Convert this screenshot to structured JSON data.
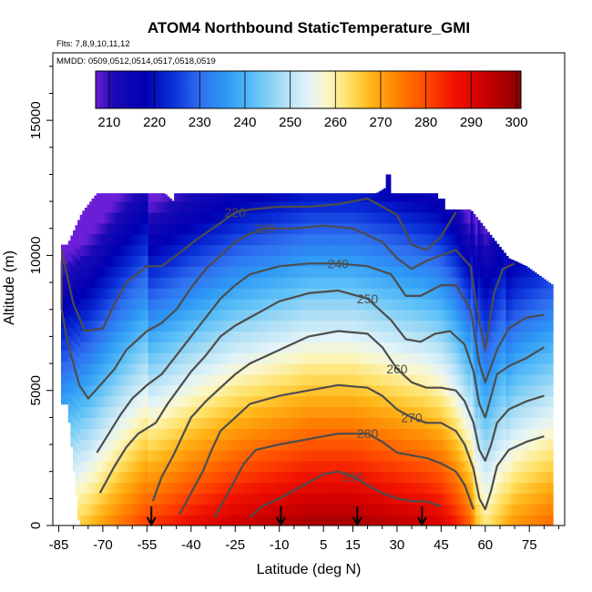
{
  "chart_data": {
    "type": "heatmap",
    "title": "ATOM4 Northbound StaticTemperature_GMI",
    "subtitle_flights": "Flts: 7,8,9,10,11,12",
    "subtitle_dates": "MMDD: 0509,0512,0514,0517,0518,0519",
    "xlabel": "Latitude (deg N)",
    "ylabel": "Altitude (m)",
    "xlim": [
      -87,
      87
    ],
    "ylim": [
      0,
      17500
    ],
    "x_ticks": [
      -85,
      -70,
      -55,
      -40,
      -25,
      -10,
      5,
      15,
      30,
      45,
      60,
      75
    ],
    "y_ticks": [
      0,
      5000,
      10000,
      15000
    ],
    "colorbar": {
      "range": [
        207,
        301
      ],
      "ticks": [
        210,
        220,
        230,
        240,
        250,
        260,
        270,
        280,
        290,
        300
      ],
      "colors": [
        [
          207,
          "#6a1fd6"
        ],
        [
          211,
          "#1a0ab4"
        ],
        [
          218,
          "#0000b3"
        ],
        [
          224,
          "#0a2fd8"
        ],
        [
          230,
          "#2f6ef0"
        ],
        [
          236,
          "#2e9af5"
        ],
        [
          242,
          "#5cc0f7"
        ],
        [
          248,
          "#a6dcf5"
        ],
        [
          254,
          "#e2f3f8"
        ],
        [
          258,
          "#fbf7c8"
        ],
        [
          263,
          "#ffe062"
        ],
        [
          268,
          "#ffb416"
        ],
        [
          274,
          "#ff8000"
        ],
        [
          280,
          "#ff4b00"
        ],
        [
          286,
          "#f21300"
        ],
        [
          292,
          "#d20000"
        ],
        [
          301,
          "#8c0000"
        ]
      ]
    },
    "contour_levels": [
      220,
      230,
      240,
      250,
      260,
      270,
      280,
      290
    ],
    "contours": [
      {
        "level": 220,
        "label": "220",
        "points": [
          [
            -84,
            10200
          ],
          [
            -80,
            8200
          ],
          [
            -76,
            7200
          ],
          [
            -70,
            7300
          ],
          [
            -66,
            8200
          ],
          [
            -62,
            9000
          ],
          [
            -55,
            9600
          ],
          [
            -50,
            9600
          ],
          [
            -45,
            10000
          ],
          [
            -38,
            10600
          ],
          [
            -30,
            11200
          ],
          [
            -25,
            11600
          ],
          [
            -20,
            11700
          ],
          [
            -10,
            11800
          ],
          [
            0,
            11800
          ],
          [
            10,
            11900
          ],
          [
            20,
            12100
          ],
          [
            30,
            11500
          ],
          [
            35,
            10400
          ],
          [
            40,
            10200
          ],
          [
            45,
            10700
          ],
          [
            50,
            11600
          ]
        ]
      },
      {
        "level": 230,
        "label": "230",
        "points": [
          [
            -84,
            9800
          ],
          [
            -84,
            8000
          ],
          [
            -82,
            6800
          ],
          [
            -78,
            5200
          ],
          [
            -75,
            4700
          ],
          [
            -70,
            5300
          ],
          [
            -66,
            5800
          ],
          [
            -62,
            6500
          ],
          [
            -55,
            7200
          ],
          [
            -50,
            7500
          ],
          [
            -45,
            8000
          ],
          [
            -40,
            8800
          ],
          [
            -35,
            9500
          ],
          [
            -30,
            10000
          ],
          [
            -25,
            10500
          ],
          [
            -20,
            10800
          ],
          [
            -15,
            11000
          ],
          [
            -5,
            11000
          ],
          [
            5,
            11100
          ],
          [
            15,
            11000
          ],
          [
            25,
            10500
          ],
          [
            30,
            9900
          ],
          [
            35,
            9500
          ],
          [
            40,
            9800
          ],
          [
            45,
            10000
          ],
          [
            50,
            10200
          ],
          [
            55,
            9600
          ],
          [
            58,
            7500
          ],
          [
            60,
            6500
          ],
          [
            63,
            8600
          ],
          [
            66,
            9500
          ],
          [
            70,
            9700
          ]
        ]
      },
      {
        "level": 240,
        "label": "240",
        "points": [
          [
            -72,
            2700
          ],
          [
            -68,
            3400
          ],
          [
            -64,
            4100
          ],
          [
            -60,
            4700
          ],
          [
            -55,
            5200
          ],
          [
            -50,
            5600
          ],
          [
            -45,
            6300
          ],
          [
            -40,
            7000
          ],
          [
            -35,
            7700
          ],
          [
            -30,
            8400
          ],
          [
            -25,
            8900
          ],
          [
            -20,
            9300
          ],
          [
            -10,
            9600
          ],
          [
            0,
            9700
          ],
          [
            10,
            9700
          ],
          [
            20,
            9600
          ],
          [
            28,
            9300
          ],
          [
            33,
            8500
          ],
          [
            38,
            8500
          ],
          [
            45,
            8900
          ],
          [
            50,
            8900
          ],
          [
            55,
            8000
          ],
          [
            58,
            6000
          ],
          [
            60,
            5300
          ],
          [
            62,
            5900
          ],
          [
            64,
            6500
          ],
          [
            68,
            7300
          ],
          [
            74,
            7700
          ],
          [
            80,
            7800
          ]
        ]
      },
      {
        "level": 250,
        "label": "250",
        "points": [
          [
            -71,
            1200
          ],
          [
            -66,
            2200
          ],
          [
            -62,
            2900
          ],
          [
            -58,
            3400
          ],
          [
            -52,
            3800
          ],
          [
            -48,
            4500
          ],
          [
            -44,
            5100
          ],
          [
            -40,
            5700
          ],
          [
            -35,
            6300
          ],
          [
            -30,
            7000
          ],
          [
            -25,
            7400
          ],
          [
            -20,
            7700
          ],
          [
            -10,
            8300
          ],
          [
            0,
            8600
          ],
          [
            10,
            8700
          ],
          [
            20,
            8400
          ],
          [
            28,
            7600
          ],
          [
            33,
            6900
          ],
          [
            38,
            6800
          ],
          [
            43,
            7100
          ],
          [
            48,
            7200
          ],
          [
            53,
            6700
          ],
          [
            56,
            5700
          ],
          [
            58,
            4500
          ],
          [
            60,
            4000
          ],
          [
            62,
            4800
          ],
          [
            64,
            5600
          ],
          [
            68,
            5900
          ],
          [
            74,
            6200
          ],
          [
            80,
            6600
          ]
        ]
      },
      {
        "level": 260,
        "label": "260",
        "points": [
          [
            -53,
            900
          ],
          [
            -50,
            1800
          ],
          [
            -46,
            2600
          ],
          [
            -43,
            3300
          ],
          [
            -40,
            4000
          ],
          [
            -35,
            4600
          ],
          [
            -30,
            5100
          ],
          [
            -25,
            5600
          ],
          [
            -20,
            6000
          ],
          [
            -10,
            6500
          ],
          [
            0,
            7000
          ],
          [
            10,
            7200
          ],
          [
            20,
            7100
          ],
          [
            25,
            6600
          ],
          [
            30,
            5800
          ],
          [
            35,
            5300
          ],
          [
            40,
            5100
          ],
          [
            45,
            5100
          ],
          [
            50,
            5000
          ],
          [
            53,
            4600
          ],
          [
            56,
            3800
          ],
          [
            58,
            2800
          ],
          [
            60,
            2400
          ],
          [
            62,
            3000
          ],
          [
            64,
            3800
          ],
          [
            68,
            4300
          ],
          [
            74,
            4600
          ],
          [
            80,
            4800
          ]
        ]
      },
      {
        "level": 270,
        "label": "270",
        "points": [
          [
            -44,
            400
          ],
          [
            -40,
            1200
          ],
          [
            -36,
            2000
          ],
          [
            -33,
            2800
          ],
          [
            -30,
            3500
          ],
          [
            -25,
            4000
          ],
          [
            -20,
            4500
          ],
          [
            -10,
            4800
          ],
          [
            0,
            5000
          ],
          [
            10,
            5200
          ],
          [
            20,
            5100
          ],
          [
            25,
            4800
          ],
          [
            30,
            4300
          ],
          [
            35,
            4000
          ],
          [
            40,
            3800
          ],
          [
            45,
            3800
          ],
          [
            50,
            3500
          ],
          [
            53,
            3000
          ],
          [
            56,
            2100
          ],
          [
            58,
            1000
          ],
          [
            60,
            600
          ],
          [
            62,
            1300
          ],
          [
            64,
            2200
          ],
          [
            68,
            2800
          ],
          [
            74,
            3100
          ],
          [
            80,
            3300
          ]
        ]
      },
      {
        "level": 280,
        "label": "280",
        "points": [
          [
            -32,
            300
          ],
          [
            -28,
            1100
          ],
          [
            -25,
            1700
          ],
          [
            -22,
            2300
          ],
          [
            -18,
            2800
          ],
          [
            -10,
            3000
          ],
          [
            0,
            3200
          ],
          [
            10,
            3400
          ],
          [
            20,
            3400
          ],
          [
            25,
            3100
          ],
          [
            30,
            2700
          ],
          [
            35,
            2600
          ],
          [
            40,
            2500
          ],
          [
            45,
            2300
          ],
          [
            50,
            2000
          ],
          [
            53,
            1500
          ],
          [
            56,
            600
          ]
        ]
      },
      {
        "level": 290,
        "label": "290",
        "points": [
          [
            -20,
            300
          ],
          [
            -16,
            700
          ],
          [
            -10,
            1000
          ],
          [
            -5,
            1300
          ],
          [
            0,
            1600
          ],
          [
            5,
            1900
          ],
          [
            10,
            2000
          ],
          [
            15,
            1800
          ],
          [
            20,
            1500
          ],
          [
            25,
            1200
          ],
          [
            30,
            1000
          ],
          [
            35,
            900
          ],
          [
            40,
            900
          ],
          [
            45,
            700
          ]
        ]
      }
    ],
    "arrows_latitude": [
      -53.5,
      -9.5,
      16.5,
      38.5
    ]
  }
}
